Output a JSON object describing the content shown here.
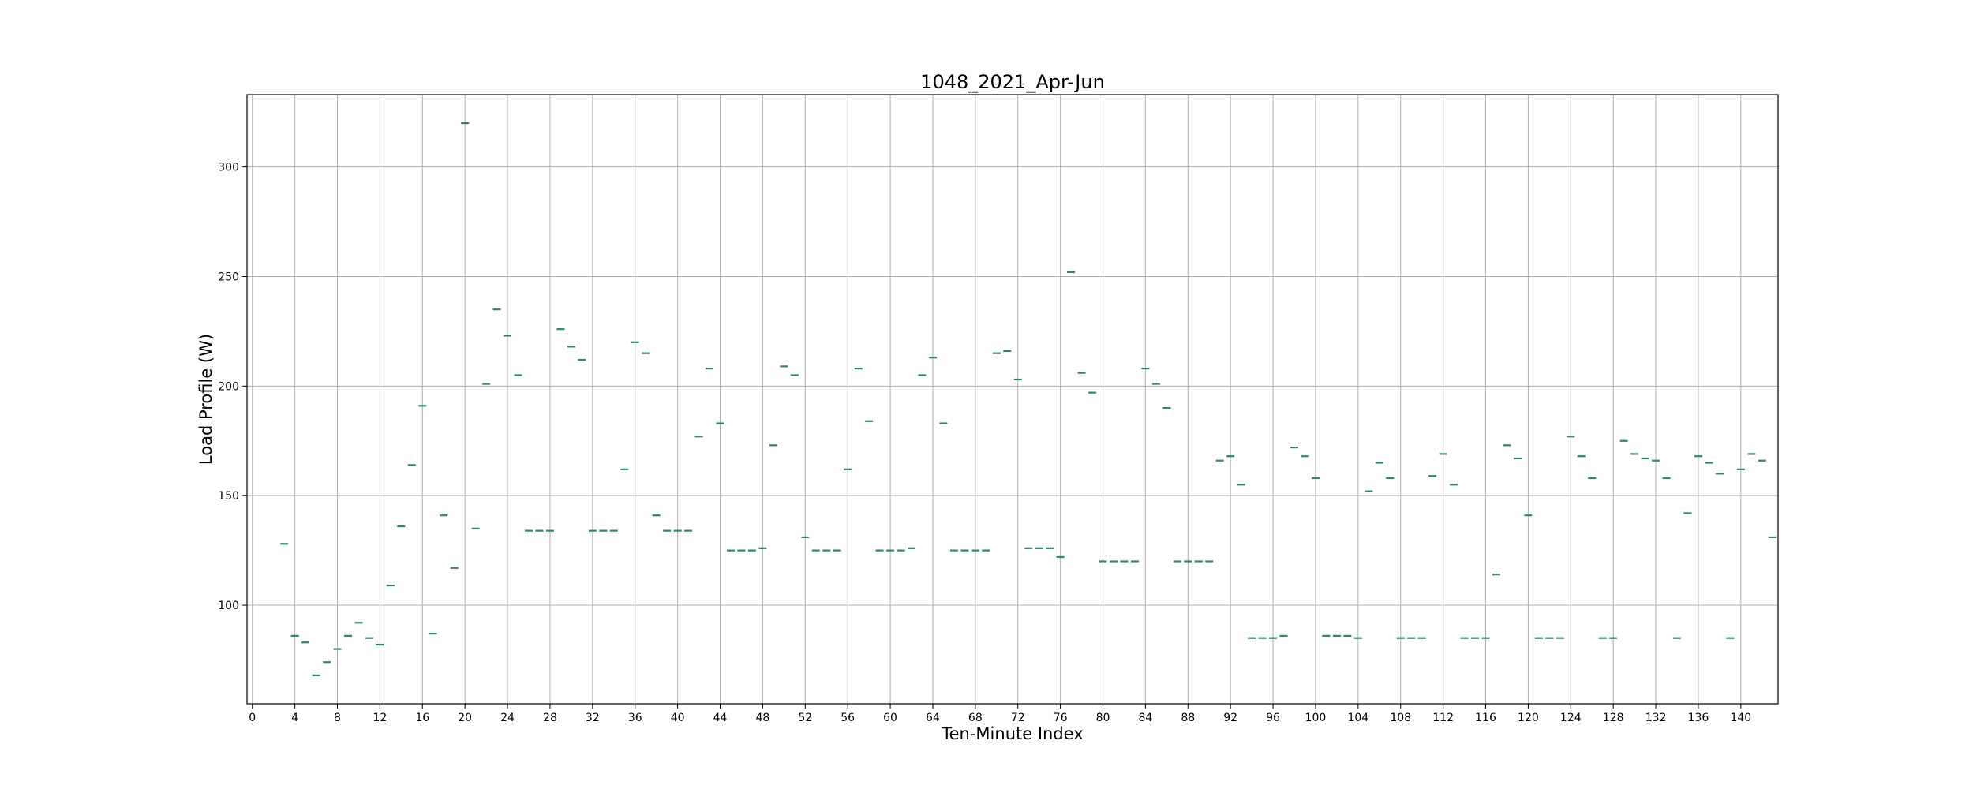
{
  "chart_data": {
    "type": "scatter",
    "title": "1048_2021_Apr-Jun",
    "xlabel": "Ten-Minute Index",
    "ylabel": "Load Profile (W)",
    "xlim": [
      -0.5,
      143.5
    ],
    "ylim": [
      55,
      333
    ],
    "xticks": [
      0,
      4,
      8,
      12,
      16,
      20,
      24,
      28,
      32,
      36,
      40,
      44,
      48,
      52,
      56,
      60,
      64,
      68,
      72,
      76,
      80,
      84,
      88,
      92,
      96,
      100,
      104,
      108,
      112,
      116,
      120,
      124,
      128,
      132,
      136,
      140
    ],
    "yticks": [
      100,
      150,
      200,
      250,
      300
    ],
    "grid": true,
    "marker": "short horizontal dash",
    "marker_color": "#2e8b57",
    "points": [
      [
        3,
        128
      ],
      [
        4,
        86
      ],
      [
        5,
        83
      ],
      [
        6,
        68
      ],
      [
        7,
        74
      ],
      [
        8,
        80
      ],
      [
        9,
        86
      ],
      [
        10,
        92
      ],
      [
        11,
        85
      ],
      [
        12,
        82
      ],
      [
        13,
        109
      ],
      [
        14,
        136
      ],
      [
        15,
        164
      ],
      [
        16,
        191
      ],
      [
        17,
        87
      ],
      [
        18,
        141
      ],
      [
        19,
        117
      ],
      [
        20,
        320
      ],
      [
        21,
        135
      ],
      [
        22,
        201
      ],
      [
        23,
        235
      ],
      [
        24,
        223
      ],
      [
        25,
        205
      ],
      [
        26,
        134
      ],
      [
        27,
        134
      ],
      [
        28,
        134
      ],
      [
        29,
        226
      ],
      [
        30,
        218
      ],
      [
        31,
        212
      ],
      [
        32,
        134
      ],
      [
        33,
        134
      ],
      [
        34,
        134
      ],
      [
        35,
        162
      ],
      [
        36,
        220
      ],
      [
        37,
        215
      ],
      [
        38,
        141
      ],
      [
        39,
        134
      ],
      [
        40,
        134
      ],
      [
        41,
        134
      ],
      [
        42,
        177
      ],
      [
        43,
        208
      ],
      [
        44,
        183
      ],
      [
        45,
        125
      ],
      [
        46,
        125
      ],
      [
        47,
        125
      ],
      [
        48,
        126
      ],
      [
        49,
        173
      ],
      [
        50,
        209
      ],
      [
        51,
        205
      ],
      [
        52,
        131
      ],
      [
        53,
        125
      ],
      [
        54,
        125
      ],
      [
        55,
        125
      ],
      [
        56,
        162
      ],
      [
        57,
        208
      ],
      [
        58,
        184
      ],
      [
        59,
        125
      ],
      [
        60,
        125
      ],
      [
        61,
        125
      ],
      [
        62,
        126
      ],
      [
        63,
        205
      ],
      [
        64,
        213
      ],
      [
        65,
        183
      ],
      [
        66,
        125
      ],
      [
        67,
        125
      ],
      [
        68,
        125
      ],
      [
        69,
        125
      ],
      [
        70,
        215
      ],
      [
        71,
        216
      ],
      [
        72,
        203
      ],
      [
        73,
        126
      ],
      [
        74,
        126
      ],
      [
        75,
        126
      ],
      [
        76,
        122
      ],
      [
        77,
        252
      ],
      [
        78,
        206
      ],
      [
        79,
        197
      ],
      [
        80,
        120
      ],
      [
        81,
        120
      ],
      [
        82,
        120
      ],
      [
        83,
        120
      ],
      [
        84,
        208
      ],
      [
        85,
        201
      ],
      [
        86,
        190
      ],
      [
        87,
        120
      ],
      [
        88,
        120
      ],
      [
        89,
        120
      ],
      [
        90,
        120
      ],
      [
        91,
        166
      ],
      [
        92,
        168
      ],
      [
        93,
        155
      ],
      [
        94,
        85
      ],
      [
        95,
        85
      ],
      [
        96,
        85
      ],
      [
        97,
        86
      ],
      [
        98,
        172
      ],
      [
        99,
        168
      ],
      [
        100,
        158
      ],
      [
        101,
        86
      ],
      [
        102,
        86
      ],
      [
        103,
        86
      ],
      [
        104,
        85
      ],
      [
        105,
        152
      ],
      [
        106,
        165
      ],
      [
        107,
        158
      ],
      [
        108,
        85
      ],
      [
        109,
        85
      ],
      [
        110,
        85
      ],
      [
        111,
        159
      ],
      [
        112,
        169
      ],
      [
        113,
        155
      ],
      [
        114,
        85
      ],
      [
        115,
        85
      ],
      [
        116,
        85
      ],
      [
        117,
        114
      ],
      [
        118,
        173
      ],
      [
        119,
        167
      ],
      [
        120,
        141
      ],
      [
        121,
        85
      ],
      [
        122,
        85
      ],
      [
        123,
        85
      ],
      [
        124,
        177
      ],
      [
        125,
        168
      ],
      [
        126,
        158
      ],
      [
        127,
        85
      ],
      [
        128,
        85
      ],
      [
        129,
        175
      ],
      [
        130,
        169
      ],
      [
        131,
        167
      ],
      [
        132,
        166
      ],
      [
        133,
        158
      ],
      [
        134,
        85
      ],
      [
        135,
        142
      ],
      [
        136,
        168
      ],
      [
        137,
        165
      ],
      [
        138,
        160
      ],
      [
        139,
        85
      ],
      [
        140,
        162
      ],
      [
        141,
        169
      ],
      [
        142,
        166
      ],
      [
        143,
        131
      ]
    ]
  }
}
